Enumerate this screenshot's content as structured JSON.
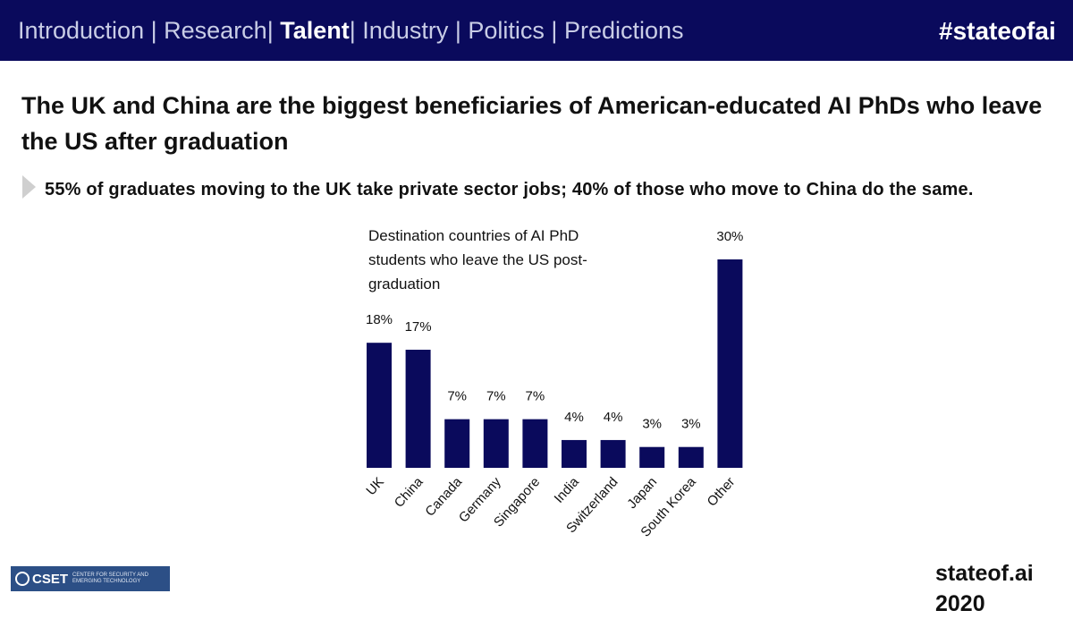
{
  "nav": {
    "items": [
      {
        "label": "Introduction",
        "active": false
      },
      {
        "label": "Research",
        "active": false
      },
      {
        "label": "Talent",
        "active": true
      },
      {
        "label": "Industry",
        "active": false
      },
      {
        "label": "Politics",
        "active": false
      },
      {
        "label": "Predictions",
        "active": false
      }
    ],
    "separator": "|",
    "hashtag": "#stateofai"
  },
  "slide": {
    "title": "The UK and China are the biggest beneficiaries of American-educated AI PhDs who leave the US after graduation",
    "subtitle": "55% of graduates moving to the UK take private sector jobs; 40% of those who move to China do the same.",
    "bullet_icon": "arrow-bullet-icon"
  },
  "chart_data": {
    "type": "bar",
    "title": "Destination countries of AI PhD students who leave the US post-graduation",
    "categories": [
      "UK",
      "China",
      "Canada",
      "Germany",
      "Singapore",
      "India",
      "Switzerland",
      "Japan",
      "South Korea",
      "Other"
    ],
    "values": [
      18,
      17,
      7,
      7,
      7,
      4,
      4,
      3,
      3,
      30
    ],
    "data_labels": [
      "18%",
      "17%",
      "7%",
      "7%",
      "7%",
      "4%",
      "4%",
      "3%",
      "3%",
      "30%"
    ],
    "ylim": [
      0,
      30
    ],
    "grid": false,
    "legend": "none",
    "bar_color": "#0a0a5c"
  },
  "footer": {
    "logo_name": "CSET",
    "logo_sub": "Center for Security and Emerging Technology",
    "brand": "stateof.ai 2020"
  },
  "colors": {
    "header_bg": "#0a0a5c",
    "bar": "#0a0a5c",
    "logo_bg": "#2c4f86"
  }
}
